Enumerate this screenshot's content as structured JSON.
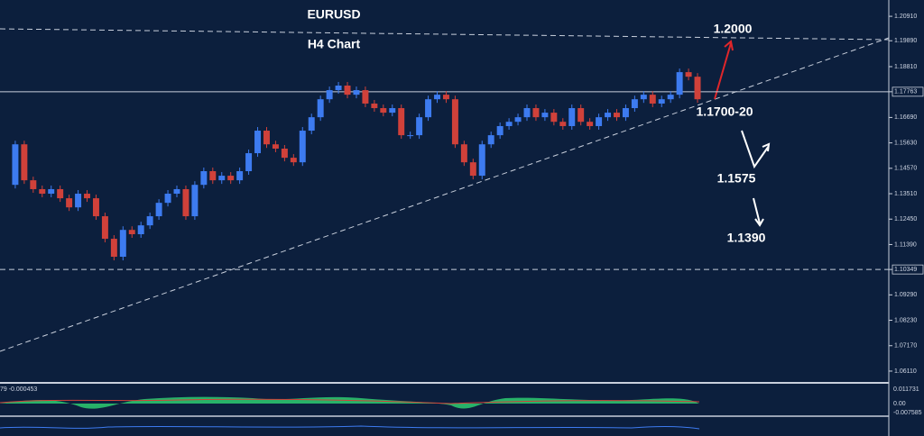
{
  "chart_data": {
    "type": "candlestick",
    "title": "EURUSD",
    "subtitle": "H4 Chart",
    "annotations": [
      "1.2000",
      "1.1700-20",
      "1.1575",
      "1.1390"
    ],
    "close": [
      1.1388,
      1.1557,
      1.1407,
      1.137,
      1.1351,
      1.137,
      1.1332,
      1.1294,
      1.1351,
      1.1332,
      1.1257,
      1.1163,
      1.1088,
      1.12,
      1.1182,
      1.1219,
      1.1257,
      1.1313,
      1.1351,
      1.137,
      1.1257,
      1.1388,
      1.1445,
      1.1407,
      1.1426,
      1.1407,
      1.1445,
      1.152,
      1.1614,
      1.1557,
      1.1539,
      1.1501,
      1.1482,
      1.1614,
      1.167,
      1.1745,
      1.1783,
      1.1802,
      1.1764,
      1.1783,
      1.1727,
      1.1708,
      1.1689,
      1.1708,
      1.1595,
      1.1595,
      1.167,
      1.1745,
      1.1764,
      1.1745,
      1.1557,
      1.1482,
      1.1426,
      1.1557,
      1.1595,
      1.1633,
      1.1651,
      1.167,
      1.1708,
      1.167,
      1.1689,
      1.1651,
      1.1633,
      1.1708,
      1.1651,
      1.1633,
      1.167,
      1.1689,
      1.167,
      1.1708,
      1.1745,
      1.1764,
      1.1727,
      1.1745,
      1.1764,
      1.1858,
      1.1839,
      1.1745
    ],
    "up_color": "#3d7bf0",
    "down_color": "#d0413a",
    "ylim": [
      1.0562,
      1.2159
    ],
    "yticks": [
      {
        "value": 1.2091,
        "label": "1.20910"
      },
      {
        "value": 1.1989,
        "label": "1.19890"
      },
      {
        "value": 1.1881,
        "label": "1.18810"
      },
      1.17763,
      {
        "value": 1.1669,
        "label": "1.16690"
      },
      {
        "value": 1.1563,
        "label": "1.15630"
      },
      {
        "value": 1.1457,
        "label": "1.14570"
      },
      {
        "value": 1.1351,
        "label": "1.13510"
      },
      {
        "value": 1.1245,
        "label": "1.12450"
      },
      {
        "value": 1.1139,
        "label": "1.11390"
      },
      1.10349,
      {
        "value": 1.0929,
        "label": "1.09290"
      },
      {
        "value": 1.0823,
        "label": "1.08230"
      },
      {
        "value": 1.0717,
        "label": "1.07170"
      },
      {
        "value": 1.0611,
        "label": "1.06110"
      }
    ],
    "levels": [
      {
        "value": 1.17763,
        "style": "solid"
      },
      {
        "value": 1.10349,
        "style": "dashed"
      }
    ],
    "indicator": {
      "header": "79 -0.000453",
      "ticks": [
        "0.011731",
        "0.00",
        "-0.007585"
      ]
    }
  }
}
